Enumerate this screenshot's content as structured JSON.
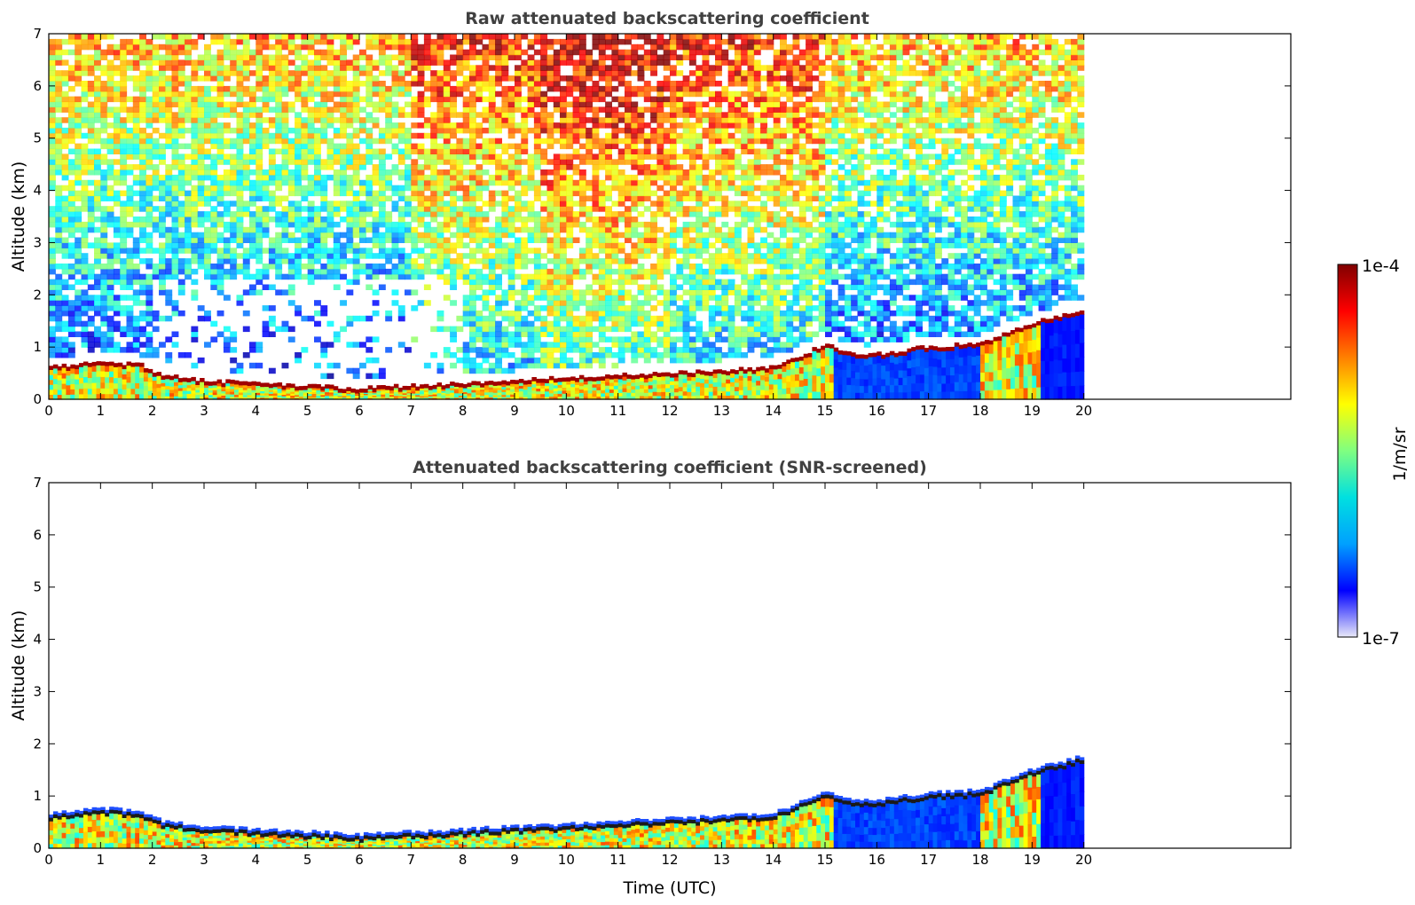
{
  "chart_data": [
    {
      "type": "heatmap",
      "title": "Raw attenuated backscattering coefficient",
      "xlabel": "",
      "ylabel": "Altitude (km)",
      "xlim": [
        0,
        24
      ],
      "ylim": [
        0,
        7
      ],
      "x_ticks": [
        "0",
        "1",
        "2",
        "3",
        "4",
        "5",
        "6",
        "7",
        "8",
        "9",
        "10",
        "11",
        "12",
        "13",
        "14",
        "15",
        "16",
        "17",
        "18",
        "19",
        "20"
      ],
      "y_ticks": [
        "0",
        "1",
        "2",
        "3",
        "4",
        "5",
        "6",
        "7"
      ],
      "data_x_range": [
        0,
        20
      ],
      "boundary_layer_top_km": [
        {
          "x": 0,
          "y": 0.55
        },
        {
          "x": 1,
          "y": 0.65
        },
        {
          "x": 1.8,
          "y": 0.6
        },
        {
          "x": 2.2,
          "y": 0.4
        },
        {
          "x": 3,
          "y": 0.3
        },
        {
          "x": 4,
          "y": 0.25
        },
        {
          "x": 5,
          "y": 0.2
        },
        {
          "x": 6,
          "y": 0.15
        },
        {
          "x": 7,
          "y": 0.2
        },
        {
          "x": 8,
          "y": 0.25
        },
        {
          "x": 9,
          "y": 0.3
        },
        {
          "x": 10,
          "y": 0.35
        },
        {
          "x": 11,
          "y": 0.4
        },
        {
          "x": 12,
          "y": 0.45
        },
        {
          "x": 13,
          "y": 0.5
        },
        {
          "x": 14,
          "y": 0.55
        },
        {
          "x": 14.5,
          "y": 0.75
        },
        {
          "x": 15,
          "y": 1.0
        },
        {
          "x": 15.5,
          "y": 0.8
        },
        {
          "x": 16,
          "y": 0.8
        },
        {
          "x": 17,
          "y": 0.95
        },
        {
          "x": 18,
          "y": 1.0
        },
        {
          "x": 18.5,
          "y": 1.2
        },
        {
          "x": 19,
          "y": 1.4
        },
        {
          "x": 20,
          "y": 1.65
        }
      ],
      "noise": true
    },
    {
      "type": "heatmap",
      "title": "Attenuated backscattering coefficient (SNR-screened)",
      "xlabel": "Time (UTC)",
      "ylabel": "Altitude (km)",
      "xlim": [
        0,
        24
      ],
      "ylim": [
        0,
        7
      ],
      "x_ticks": [
        "0",
        "1",
        "2",
        "3",
        "4",
        "5",
        "6",
        "7",
        "8",
        "9",
        "10",
        "11",
        "12",
        "13",
        "14",
        "15",
        "16",
        "17",
        "18",
        "19",
        "20"
      ],
      "y_ticks": [
        "0",
        "1",
        "2",
        "3",
        "4",
        "5",
        "6",
        "7"
      ],
      "data_x_range": [
        0,
        20
      ],
      "noise": false
    }
  ],
  "colorbar": {
    "label": "1/m/sr",
    "max_label": "1e-4",
    "min_label": "1e-7",
    "scale": "log",
    "colormap": "jet",
    "colors": [
      "#e8e8f8",
      "#0000ff",
      "#00a0ff",
      "#00e0e0",
      "#80ff80",
      "#ffff00",
      "#ff8000",
      "#ff0000",
      "#800000"
    ]
  }
}
